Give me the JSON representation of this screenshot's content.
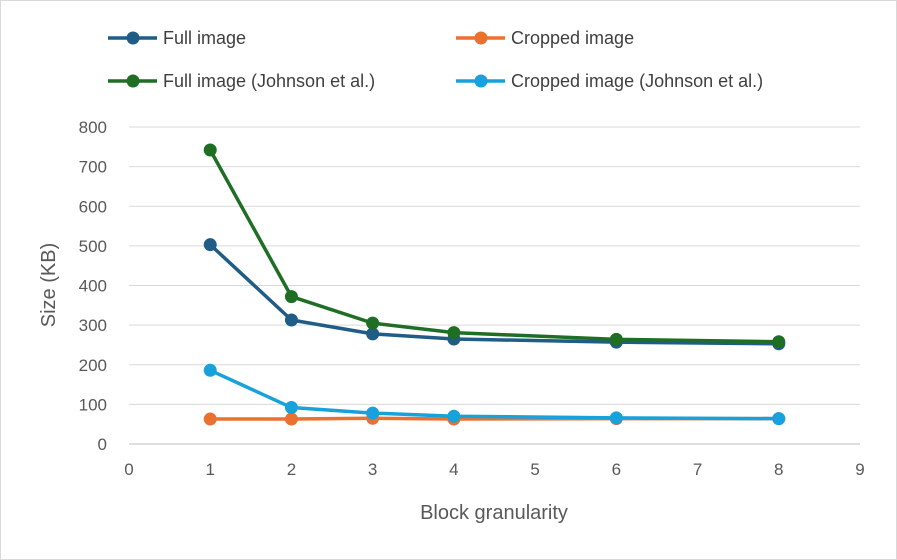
{
  "chart_data": {
    "type": "line",
    "title": "",
    "xlabel": "Block granularity",
    "ylabel": "Size (KB)",
    "xlim": [
      0,
      9
    ],
    "ylim": [
      0,
      800
    ],
    "xticks": [
      0,
      1,
      2,
      3,
      4,
      5,
      6,
      7,
      8,
      9
    ],
    "yticks": [
      0,
      100,
      200,
      300,
      400,
      500,
      600,
      700,
      800
    ],
    "grid": "horizontal",
    "legend_position": "top",
    "x": [
      1,
      2,
      3,
      4,
      6,
      8
    ],
    "series": [
      {
        "name": "Full image",
        "color": "#1f5c86",
        "values": [
          503,
          313,
          278,
          265,
          257,
          253
        ]
      },
      {
        "name": "Cropped image",
        "color": "#e97132",
        "values": [
          63,
          63,
          65,
          63,
          64,
          64
        ]
      },
      {
        "name": "Full image (Johnson et al.)",
        "color": "#1e6f24",
        "values": [
          742,
          372,
          305,
          281,
          264,
          258
        ]
      },
      {
        "name": "Cropped image (Johnson et al.)",
        "color": "#17a2db",
        "values": [
          186,
          92,
          78,
          70,
          66,
          64
        ]
      }
    ]
  }
}
